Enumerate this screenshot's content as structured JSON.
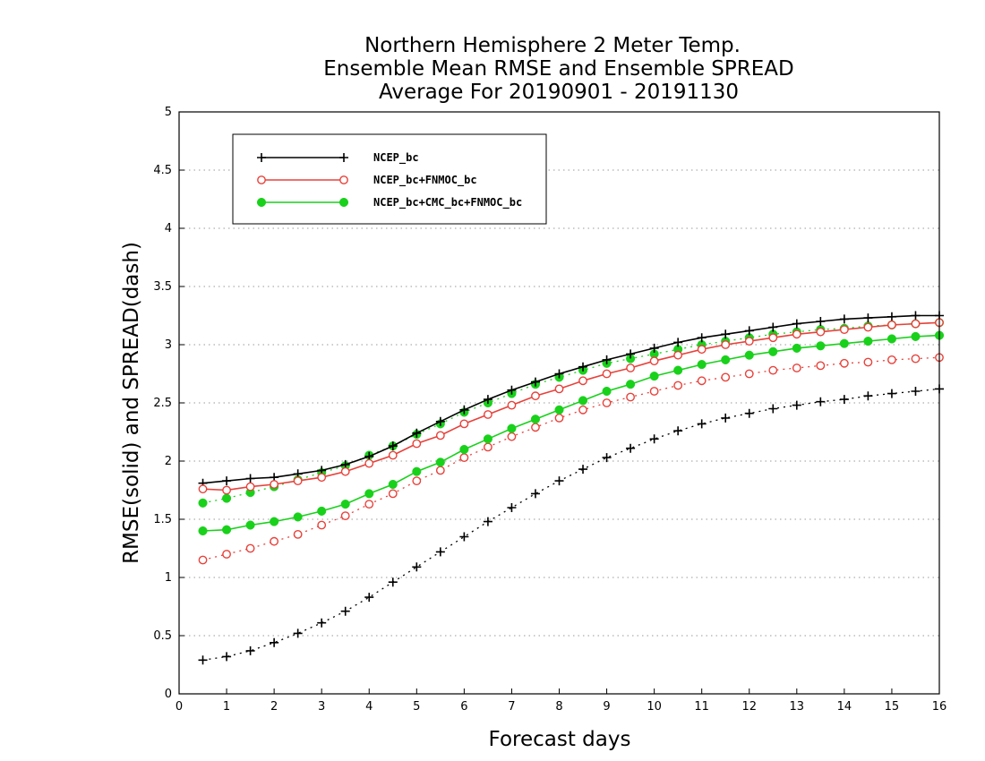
{
  "chart_data": {
    "type": "line",
    "title": [
      "Northern Hemisphere 2 Meter Temp.",
      "Ensemble Mean RMSE and Ensemble SPREAD",
      "Average For 20190901 - 20191130"
    ],
    "xlabel": "Forecast days",
    "ylabel": "RMSE(solid) and SPREAD(dash)",
    "xlim": [
      0,
      16
    ],
    "ylim": [
      0,
      5
    ],
    "xticks": [
      "0",
      "1",
      "2",
      "3",
      "4",
      "5",
      "6",
      "7",
      "8",
      "9",
      "10",
      "11",
      "12",
      "13",
      "14",
      "15",
      "16"
    ],
    "yticks": [
      "0",
      "0.5",
      "1",
      "1.5",
      "2",
      "2.5",
      "3",
      "3.5",
      "4",
      "4.5",
      "5"
    ],
    "grid": "horizontal dotted",
    "legend_position": "top-left",
    "x": [
      0.5,
      1,
      1.5,
      2,
      2.5,
      3,
      3.5,
      4,
      4.5,
      5,
      5.5,
      6,
      6.5,
      7,
      7.5,
      8,
      8.5,
      9,
      9.5,
      10,
      10.5,
      11,
      11.5,
      12,
      12.5,
      13,
      13.5,
      14,
      14.5,
      15,
      15.5,
      16
    ],
    "series": [
      {
        "name": "NCEP_bc",
        "kind": "rmse",
        "style": "solid",
        "marker": "plus",
        "color": "#000000",
        "values": [
          1.81,
          1.83,
          1.85,
          1.86,
          1.89,
          1.92,
          1.97,
          2.04,
          2.13,
          2.24,
          2.34,
          2.44,
          2.53,
          2.61,
          2.68,
          2.75,
          2.81,
          2.87,
          2.92,
          2.97,
          3.02,
          3.06,
          3.09,
          3.12,
          3.15,
          3.18,
          3.2,
          3.22,
          3.23,
          3.24,
          3.25,
          3.25
        ]
      },
      {
        "name": "NCEP_bc+FNMOC_bc",
        "kind": "rmse",
        "style": "solid",
        "marker": "open-circle",
        "color": "#e8413a",
        "values": [
          1.76,
          1.75,
          1.78,
          1.8,
          1.83,
          1.86,
          1.91,
          1.98,
          2.05,
          2.15,
          2.22,
          2.32,
          2.4,
          2.48,
          2.56,
          2.62,
          2.69,
          2.75,
          2.8,
          2.86,
          2.91,
          2.96,
          3.0,
          3.03,
          3.06,
          3.09,
          3.11,
          3.13,
          3.15,
          3.17,
          3.18,
          3.19
        ]
      },
      {
        "name": "NCEP_bc+CMC_bc+FNMOC_bc",
        "kind": "rmse",
        "style": "solid",
        "marker": "filled-circle",
        "color": "#19d11b",
        "values": [
          1.4,
          1.41,
          1.45,
          1.48,
          1.52,
          1.57,
          1.63,
          1.72,
          1.8,
          1.91,
          1.99,
          2.1,
          2.19,
          2.28,
          2.36,
          2.44,
          2.52,
          2.6,
          2.66,
          2.73,
          2.78,
          2.83,
          2.87,
          2.91,
          2.94,
          2.97,
          2.99,
          3.01,
          3.03,
          3.05,
          3.07,
          3.08
        ]
      },
      {
        "name": "NCEP_bc",
        "kind": "spread",
        "style": "dash",
        "marker": "plus",
        "color": "#000000",
        "values": [
          0.29,
          0.32,
          0.37,
          0.44,
          0.52,
          0.61,
          0.71,
          0.83,
          0.96,
          1.09,
          1.22,
          1.35,
          1.48,
          1.6,
          1.72,
          1.83,
          1.93,
          2.03,
          2.11,
          2.19,
          2.26,
          2.32,
          2.37,
          2.41,
          2.45,
          2.48,
          2.51,
          2.53,
          2.56,
          2.58,
          2.6,
          2.62
        ]
      },
      {
        "name": "NCEP_bc+FNMOC_bc",
        "kind": "spread",
        "style": "dash",
        "marker": "open-circle",
        "color": "#e8413a",
        "values": [
          1.15,
          1.2,
          1.25,
          1.31,
          1.37,
          1.45,
          1.53,
          1.63,
          1.72,
          1.83,
          1.92,
          2.03,
          2.12,
          2.21,
          2.29,
          2.37,
          2.44,
          2.5,
          2.55,
          2.6,
          2.65,
          2.69,
          2.72,
          2.75,
          2.78,
          2.8,
          2.82,
          2.84,
          2.85,
          2.87,
          2.88,
          2.89
        ]
      },
      {
        "name": "NCEP_bc+CMC_bc+FNMOC_bc",
        "kind": "spread",
        "style": "dash",
        "marker": "filled-circle",
        "color": "#19d11b",
        "values": [
          1.64,
          1.68,
          1.73,
          1.78,
          1.84,
          1.9,
          1.96,
          2.05,
          2.13,
          2.23,
          2.32,
          2.42,
          2.5,
          2.58,
          2.66,
          2.72,
          2.78,
          2.84,
          2.88,
          2.92,
          2.96,
          3.0,
          3.03,
          3.06,
          3.09,
          3.11,
          3.13,
          3.14,
          3.16,
          3.17,
          3.18,
          3.19
        ]
      }
    ],
    "legend": [
      {
        "label": "NCEP_bc",
        "marker": "plus",
        "color": "#000000"
      },
      {
        "label": "NCEP_bc+FNMOC_bc",
        "marker": "open-circle",
        "color": "#e8413a"
      },
      {
        "label": "NCEP_bc+CMC_bc+FNMOC_bc",
        "marker": "filled-circle",
        "color": "#19d11b"
      }
    ]
  }
}
